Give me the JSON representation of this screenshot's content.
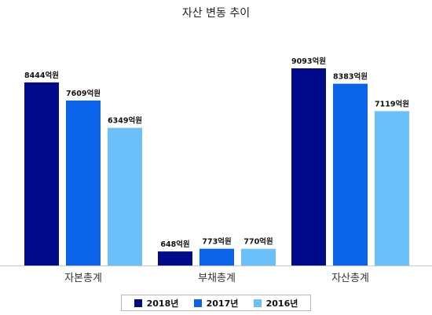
{
  "title": "자산 변동 추이",
  "chart_data": {
    "type": "bar",
    "title": "자산 변동 추이",
    "categories": [
      "자본총계",
      "부채총계",
      "자산총계"
    ],
    "series": [
      {
        "name": "2018년",
        "color": "#000b8b",
        "values": [
          8444,
          648,
          9093
        ],
        "labels": [
          "8444억원",
          "648억원",
          "9093억원"
        ]
      },
      {
        "name": "2017년",
        "color": "#0a63e8",
        "values": [
          7609,
          773,
          8383
        ],
        "labels": [
          "7609억원",
          "773억원",
          "8383억원"
        ]
      },
      {
        "name": "2016년",
        "color": "#6cc0f9",
        "values": [
          6349,
          770,
          7119
        ],
        "labels": [
          "6349억원",
          "770억원",
          "7119억원"
        ]
      }
    ],
    "value_unit": "억원",
    "ylim": [
      0,
      9093
    ],
    "grid": false,
    "legend_position": "bottom"
  }
}
